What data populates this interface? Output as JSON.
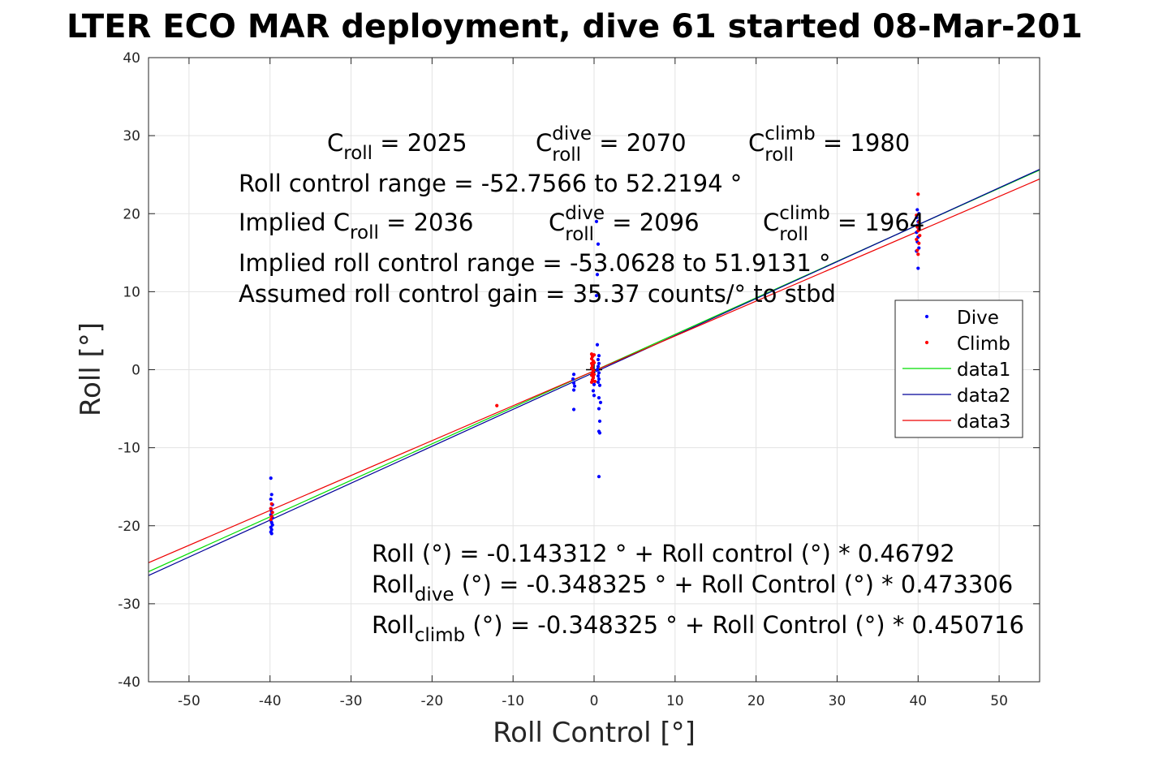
{
  "chart_data": {
    "type": "scatter",
    "title": "LTER ECO MAR deployment, dive 61 started 08-Mar-201",
    "xlabel": "Roll Control [°]",
    "ylabel": "Roll [°]",
    "xlim": [
      -55,
      55
    ],
    "ylim": [
      -40,
      40
    ],
    "xticks": [
      -50,
      -40,
      -30,
      -20,
      -10,
      0,
      10,
      20,
      30,
      40,
      50
    ],
    "yticks": [
      -40,
      -30,
      -20,
      -10,
      0,
      10,
      20,
      30,
      40
    ],
    "grid": true,
    "legend_position": "right",
    "legend": [
      "Dive",
      "Climb",
      "data1",
      "data2",
      "data3"
    ],
    "colors": {
      "dive": "#0000ff",
      "climb": "#ff0000",
      "data1": "#00dd00",
      "data2": "#000099",
      "data3": "#ee0000",
      "zero_marker": "#000000"
    },
    "series": [
      {
        "name": "Dive",
        "kind": "points",
        "points": [
          [
            -39.9,
            -13.9
          ],
          [
            -39.8,
            -16.0
          ],
          [
            -39.9,
            -16.6
          ],
          [
            -39.7,
            -17.3
          ],
          [
            -39.9,
            -17.8
          ],
          [
            -39.8,
            -18.2
          ],
          [
            -39.9,
            -18.6
          ],
          [
            -39.7,
            -19.0
          ],
          [
            -39.9,
            -19.3
          ],
          [
            -39.8,
            -19.6
          ],
          [
            -39.7,
            -19.9
          ],
          [
            -39.9,
            -20.2
          ],
          [
            -39.8,
            -20.5
          ],
          [
            -39.9,
            -20.8
          ],
          [
            -39.8,
            -21.0
          ],
          [
            -2.5,
            -0.6
          ],
          [
            -2.6,
            -1.2
          ],
          [
            -2.5,
            -1.7
          ],
          [
            -2.4,
            -2.1
          ],
          [
            -2.5,
            -2.6
          ],
          [
            -2.5,
            -5.1
          ],
          [
            0.3,
            19.0
          ],
          [
            0.5,
            16.1
          ],
          [
            0.4,
            12.2
          ],
          [
            0.3,
            9.5
          ],
          [
            0.4,
            3.2
          ],
          [
            0.6,
            1.8
          ],
          [
            0.5,
            1.3
          ],
          [
            0.6,
            0.8
          ],
          [
            0.5,
            0.4
          ],
          [
            0.4,
            0.0
          ],
          [
            0.6,
            -0.4
          ],
          [
            0.5,
            -0.8
          ],
          [
            0.6,
            -1.2
          ],
          [
            0.5,
            -1.6
          ],
          [
            0.7,
            -2.0
          ],
          [
            0.6,
            -3.6
          ],
          [
            0.8,
            -4.2
          ],
          [
            0.6,
            -5.0
          ],
          [
            0.7,
            -6.6
          ],
          [
            0.6,
            -7.9
          ],
          [
            0.7,
            -8.1
          ],
          [
            0.6,
            -13.7
          ],
          [
            0.0,
            -1.9
          ],
          [
            -0.1,
            -2.7
          ],
          [
            0.0,
            -3.3
          ],
          [
            39.9,
            20.5
          ],
          [
            40.1,
            20.0
          ],
          [
            39.8,
            19.5
          ],
          [
            40.0,
            19.0
          ],
          [
            39.9,
            18.5
          ],
          [
            40.1,
            18.0
          ],
          [
            39.8,
            17.6
          ],
          [
            40.0,
            17.0
          ],
          [
            39.9,
            16.4
          ],
          [
            40.1,
            15.6
          ],
          [
            39.8,
            15.2
          ],
          [
            40.0,
            13.0
          ]
        ]
      },
      {
        "name": "Climb",
        "kind": "points",
        "points": [
          [
            -39.8,
            -17.2
          ],
          [
            -39.9,
            -17.8
          ],
          [
            -39.7,
            -18.3
          ],
          [
            -39.8,
            -18.8
          ],
          [
            -39.9,
            -19.2
          ],
          [
            -12.0,
            -4.6
          ],
          [
            -0.3,
            2.0
          ],
          [
            -0.2,
            1.7
          ],
          [
            -0.3,
            1.4
          ],
          [
            -0.1,
            1.1
          ],
          [
            -0.3,
            0.8
          ],
          [
            -0.2,
            0.5
          ],
          [
            -0.3,
            0.2
          ],
          [
            -0.1,
            -0.1
          ],
          [
            -0.2,
            -0.4
          ],
          [
            -0.3,
            -0.7
          ],
          [
            -0.1,
            -1.0
          ],
          [
            -0.2,
            -1.3
          ],
          [
            -0.3,
            -1.6
          ],
          [
            0.0,
            1.9
          ],
          [
            0.0,
            0.9
          ],
          [
            0.0,
            -0.6
          ],
          [
            0.1,
            -1.5
          ],
          [
            40.0,
            22.5
          ],
          [
            39.8,
            19.8
          ],
          [
            40.1,
            18.9
          ],
          [
            39.9,
            18.3
          ],
          [
            40.0,
            17.8
          ],
          [
            40.2,
            17.2
          ],
          [
            39.8,
            16.7
          ],
          [
            40.1,
            16.2
          ],
          [
            39.9,
            15.3
          ],
          [
            40.0,
            14.8
          ]
        ]
      },
      {
        "name": "data1",
        "kind": "line",
        "points": [
          [
            -55,
            -25.88
          ],
          [
            55,
            25.59
          ]
        ]
      },
      {
        "name": "data2",
        "kind": "line",
        "points": [
          [
            -55,
            -26.38
          ],
          [
            55,
            25.68
          ]
        ]
      },
      {
        "name": "data3",
        "kind": "line",
        "points": [
          [
            -55,
            -24.74
          ],
          [
            55,
            24.44
          ]
        ]
      }
    ],
    "annotations": {
      "c_roll": {
        "main": "C",
        "sub": "roll",
        "rest": " = 2025"
      },
      "c_roll_dive": {
        "main": "C",
        "sup": "dive",
        "sub": "roll",
        "rest": " = 2070"
      },
      "c_roll_climb": {
        "main": "C",
        "sup": "climb",
        "sub": "roll",
        "rest": " = 1980"
      },
      "range": "Roll control range = -52.7566 to 52.2194 °",
      "implied_c_roll": {
        "prefix": "Implied C",
        "sub": "roll",
        "rest": " = 2036"
      },
      "implied_c_dive": {
        "main": "C",
        "sup": "dive",
        "sub": "roll",
        "rest": " = 2096"
      },
      "implied_c_climb": {
        "main": "C",
        "sup": "climb",
        "sub": "roll",
        "rest": " = 1964"
      },
      "implied_range": "Implied roll control range = -53.0628 to 51.9131 °",
      "gain": "Assumed roll control gain = 35.37 counts/° to stbd",
      "fit": "Roll (°) = -0.143312 ° + Roll control (°) * 0.46792",
      "fit_dive": {
        "main": "Roll",
        "sub": "dive",
        "rest": " (°) = -0.348325 ° + Roll Control (°) * 0.473306"
      },
      "fit_climb": {
        "main": "Roll",
        "sub": "climb",
        "rest": " (°) = -0.348325 ° + Roll Control (°) * 0.450716"
      }
    }
  }
}
